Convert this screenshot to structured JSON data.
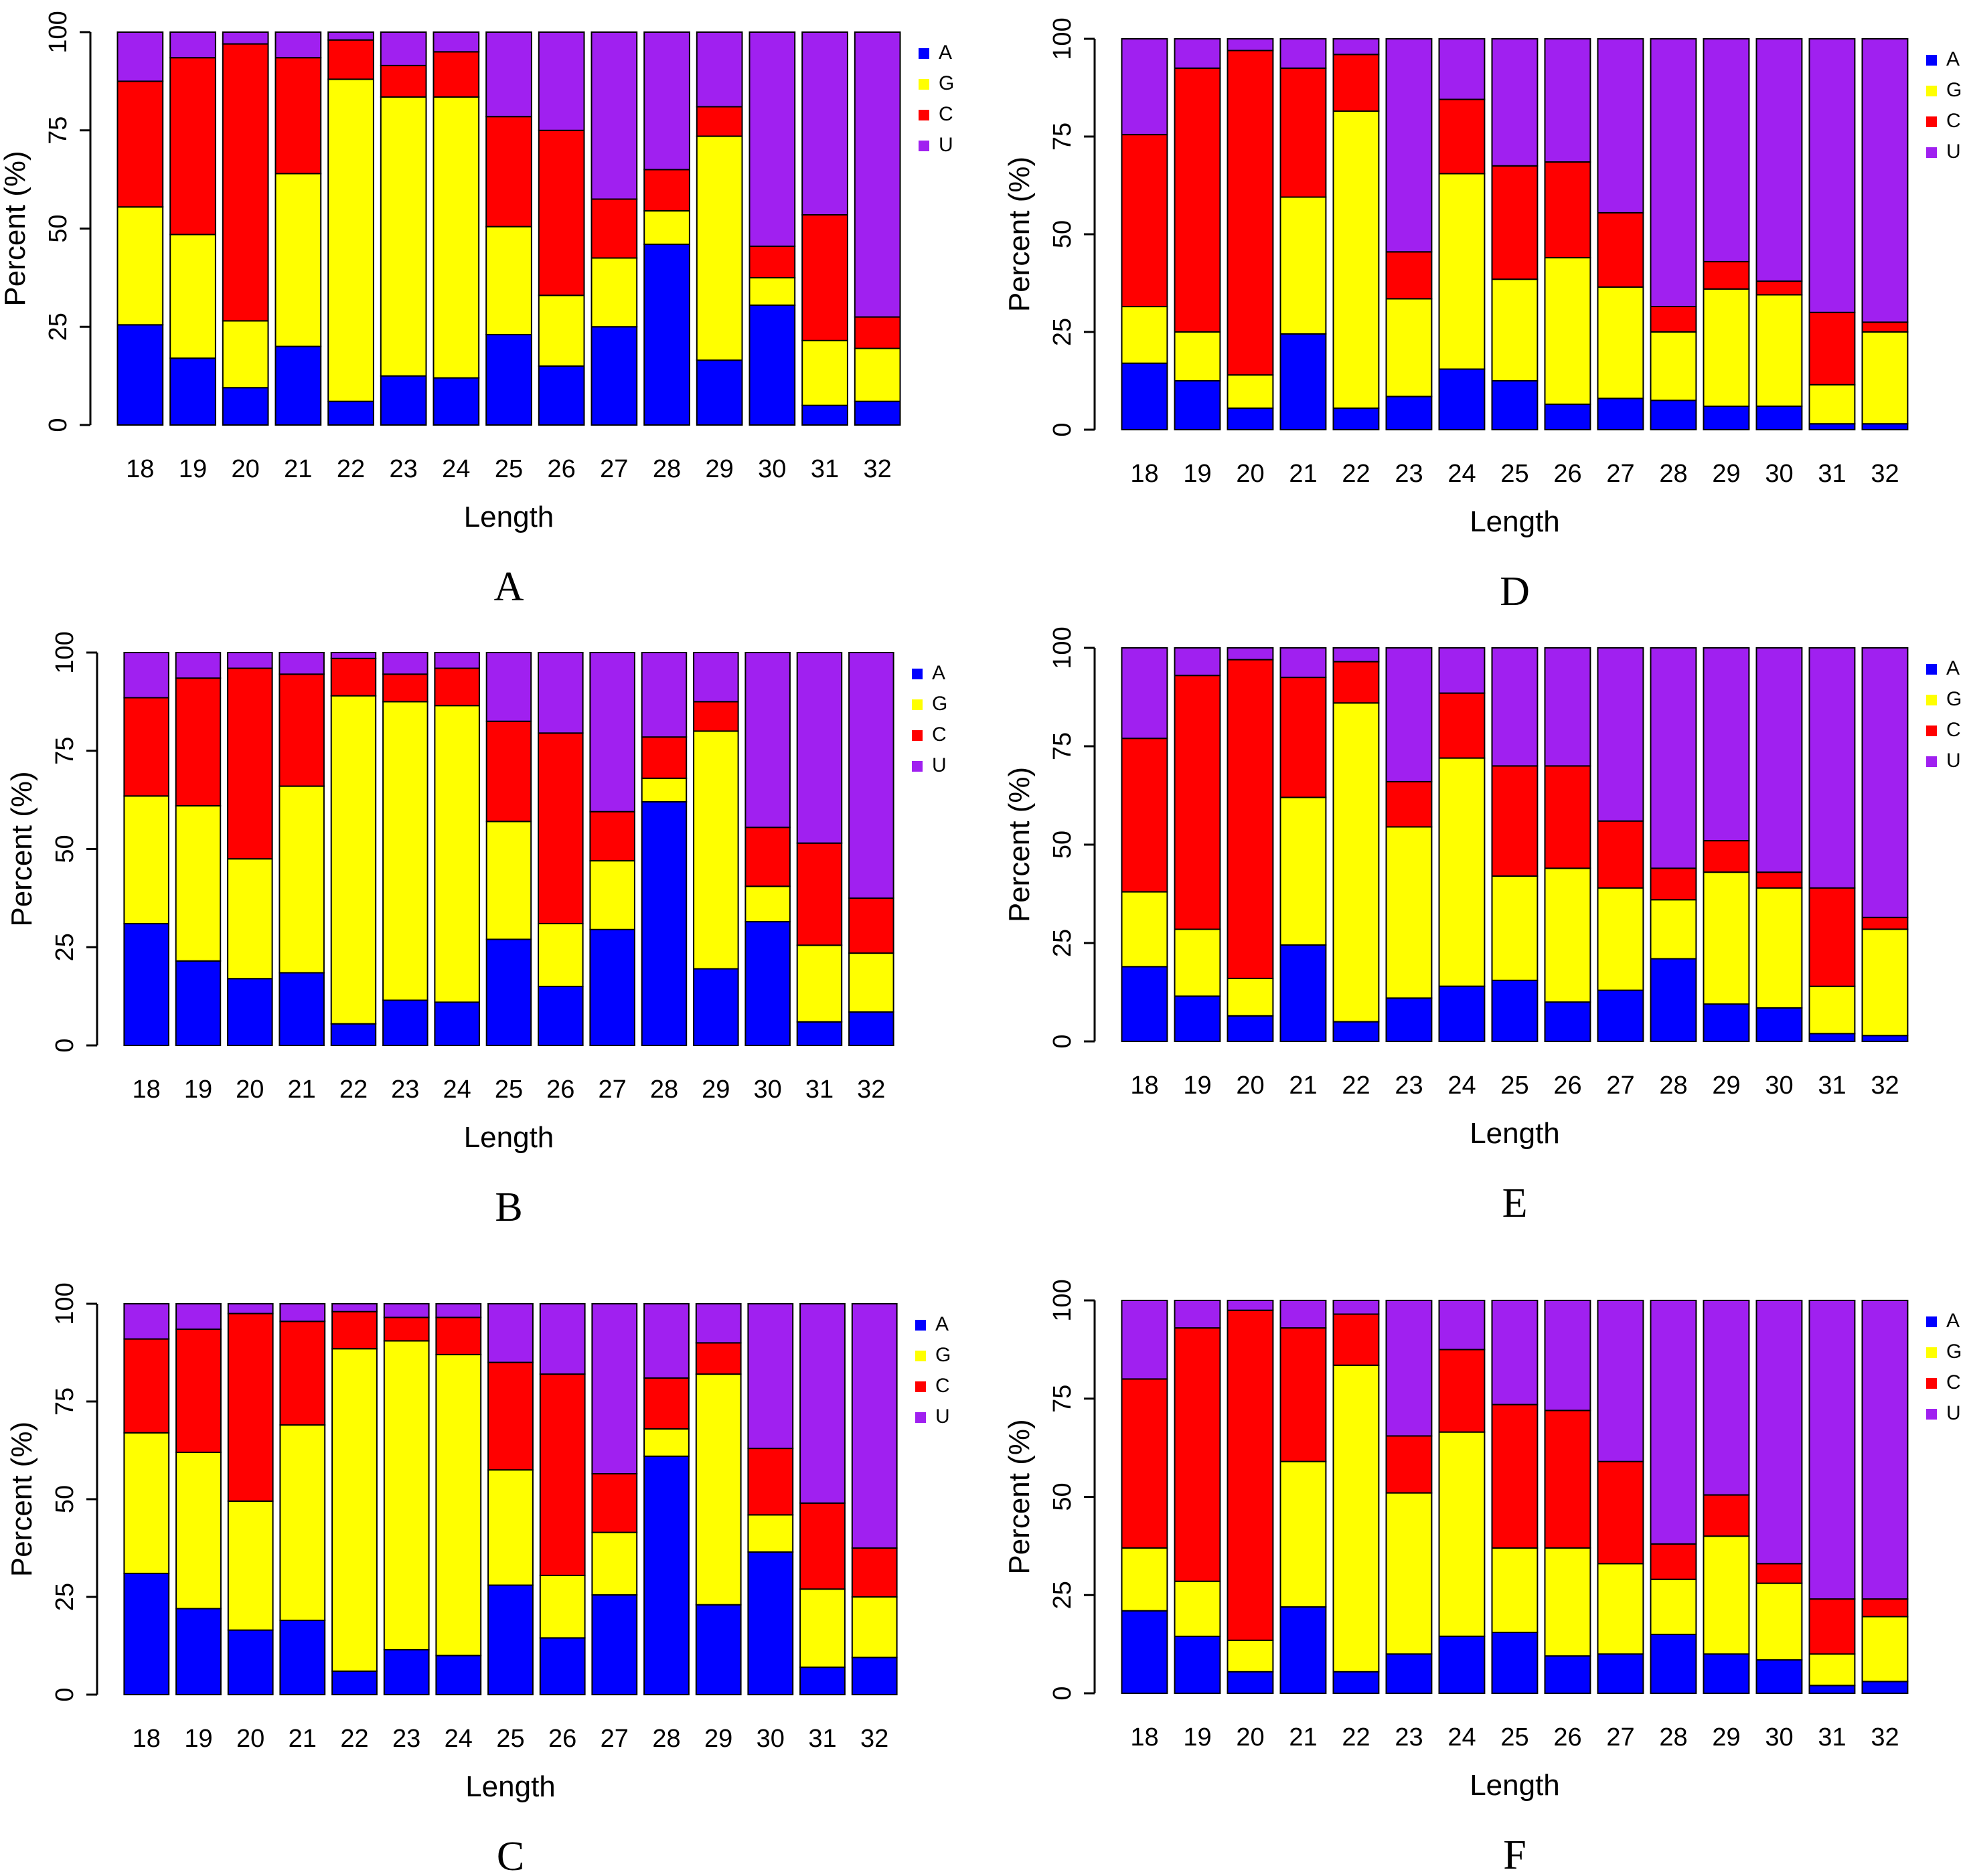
{
  "figure": {
    "legend": [
      {
        "label": "A",
        "color": "#0000ff"
      },
      {
        "label": "G",
        "color": "#ffff00"
      },
      {
        "label": "C",
        "color": "#ff0000"
      },
      {
        "label": "U",
        "color": "#a020f0"
      }
    ]
  },
  "chart_data": [
    {
      "panel": "A",
      "type": "bar",
      "stacked": true,
      "xlabel": "Length",
      "ylabel": "Percent (%)",
      "ylim": [
        0,
        100
      ],
      "yticks": [
        "0",
        "25",
        "50",
        "75",
        "100"
      ],
      "categories": [
        "18",
        "19",
        "20",
        "21",
        "22",
        "23",
        "24",
        "25",
        "26",
        "27",
        "28",
        "29",
        "30",
        "31",
        "32"
      ],
      "series": [
        {
          "name": "A",
          "values": [
            25.5,
            17,
            9.5,
            20,
            6,
            12.5,
            12,
            23,
            15,
            25,
            46,
            16.5,
            30.5,
            5,
            6
          ]
        },
        {
          "name": "G",
          "values": [
            30,
            31.5,
            17,
            44,
            82,
            71,
            71.5,
            27.5,
            18,
            17.5,
            8.5,
            57,
            7,
            16.5,
            13.5
          ]
        },
        {
          "name": "C",
          "values": [
            32,
            45,
            70.5,
            29.5,
            10,
            8,
            11.5,
            28,
            42,
            15,
            10.5,
            7.5,
            8,
            32,
            8
          ]
        },
        {
          "name": "U",
          "values": [
            12.5,
            6.5,
            3,
            6.5,
            2,
            8.5,
            5,
            21.5,
            25,
            42.5,
            35,
            19,
            54.5,
            46.5,
            72.5
          ]
        }
      ]
    },
    {
      "panel": "B",
      "type": "bar",
      "stacked": true,
      "xlabel": "Length",
      "ylabel": "Percent (%)",
      "ylim": [
        0,
        100
      ],
      "yticks": [
        "0",
        "25",
        "50",
        "75",
        "100"
      ],
      "categories": [
        "18",
        "19",
        "20",
        "21",
        "22",
        "23",
        "24",
        "25",
        "26",
        "27",
        "28",
        "29",
        "30",
        "31",
        "32"
      ],
      "series": [
        {
          "name": "A",
          "values": [
            31,
            21.5,
            17,
            18.5,
            5.5,
            11.5,
            11,
            27,
            15,
            29.5,
            62,
            19.5,
            31.5,
            6,
            8.5
          ]
        },
        {
          "name": "G",
          "values": [
            32.5,
            39.5,
            30.5,
            47.5,
            83.5,
            76,
            75.5,
            30,
            16,
            17.5,
            6,
            60.5,
            9,
            19.5,
            15
          ]
        },
        {
          "name": "C",
          "values": [
            25,
            32.5,
            48.5,
            28.5,
            9.5,
            7,
            9.5,
            25.5,
            48.5,
            12.5,
            10.5,
            7.5,
            15,
            26,
            14
          ]
        },
        {
          "name": "U",
          "values": [
            11.5,
            6.5,
            4,
            5.5,
            1.5,
            5.5,
            4,
            17.5,
            20.5,
            40.5,
            21.5,
            12.5,
            44.5,
            48.5,
            62.5
          ]
        }
      ]
    },
    {
      "panel": "C",
      "type": "bar",
      "stacked": true,
      "xlabel": "Length",
      "ylabel": "Percent (%)",
      "ylim": [
        0,
        100
      ],
      "yticks": [
        "0",
        "25",
        "50",
        "75",
        "100"
      ],
      "categories": [
        "18",
        "19",
        "20",
        "21",
        "22",
        "23",
        "24",
        "25",
        "26",
        "27",
        "28",
        "29",
        "30",
        "31",
        "32"
      ],
      "series": [
        {
          "name": "A",
          "values": [
            31,
            22,
            16.5,
            19,
            6,
            11.5,
            10,
            28,
            14.5,
            25.5,
            61,
            23,
            36.5,
            7,
            9.5
          ]
        },
        {
          "name": "G",
          "values": [
            36,
            40,
            33,
            50,
            82.5,
            79,
            77,
            29.5,
            16,
            16,
            7,
            59,
            9.5,
            20,
            15.5
          ]
        },
        {
          "name": "C",
          "values": [
            24,
            31.5,
            48,
            26.5,
            9.5,
            6,
            9.5,
            27.5,
            51.5,
            15,
            13,
            8,
            17,
            22,
            12.5
          ]
        },
        {
          "name": "U",
          "values": [
            9,
            6.5,
            2.5,
            4.5,
            2,
            3.5,
            3.5,
            15,
            18,
            43.5,
            19,
            10,
            37,
            51,
            62.5
          ]
        }
      ]
    },
    {
      "panel": "D",
      "type": "bar",
      "stacked": true,
      "xlabel": "Length",
      "ylabel": "Percent (%)",
      "ylim": [
        0,
        100
      ],
      "yticks": [
        "0",
        "25",
        "50",
        "75",
        "100"
      ],
      "categories": [
        "18",
        "19",
        "20",
        "21",
        "22",
        "23",
        "24",
        "25",
        "26",
        "27",
        "28",
        "29",
        "30",
        "31",
        "32"
      ],
      "series": [
        {
          "name": "A",
          "values": [
            17,
            12.5,
            5.5,
            24.5,
            5.5,
            8.5,
            15.5,
            12.5,
            6.5,
            8,
            7.5,
            6,
            6,
            1.5,
            1.5
          ]
        },
        {
          "name": "G",
          "values": [
            14.5,
            12.5,
            8.5,
            35,
            76,
            25,
            50,
            26,
            37.5,
            28.5,
            17.5,
            30,
            28.5,
            10,
            23.5
          ]
        },
        {
          "name": "C",
          "values": [
            44,
            67.5,
            83,
            33,
            14.5,
            12,
            19,
            29,
            24.5,
            19,
            6.5,
            7,
            3.5,
            18.5,
            2.5
          ]
        },
        {
          "name": "U",
          "values": [
            24.5,
            7.5,
            3,
            7.5,
            4,
            54.5,
            15.5,
            32.5,
            31.5,
            44.5,
            68.5,
            57,
            62,
            70,
            72.5
          ]
        }
      ]
    },
    {
      "panel": "E",
      "type": "bar",
      "stacked": true,
      "xlabel": "Length",
      "ylabel": "Percent (%)",
      "ylim": [
        0,
        100
      ],
      "yticks": [
        "0",
        "25",
        "50",
        "75",
        "100"
      ],
      "categories": [
        "18",
        "19",
        "20",
        "21",
        "22",
        "23",
        "24",
        "25",
        "26",
        "27",
        "28",
        "29",
        "30",
        "31",
        "32"
      ],
      "series": [
        {
          "name": "A",
          "values": [
            19,
            11.5,
            6.5,
            24.5,
            5,
            11,
            14,
            15.5,
            10,
            13,
            21,
            9.5,
            8.5,
            2,
            1.5
          ]
        },
        {
          "name": "G",
          "values": [
            19,
            17,
            9.5,
            37.5,
            81,
            43.5,
            58,
            26.5,
            34,
            26,
            15,
            33.5,
            30.5,
            12,
            27
          ]
        },
        {
          "name": "C",
          "values": [
            39,
            64.5,
            81,
            30.5,
            10.5,
            11.5,
            16.5,
            28,
            26,
            17,
            8,
            8,
            4,
            25,
            3
          ]
        },
        {
          "name": "U",
          "values": [
            23,
            7,
            3,
            7.5,
            3.5,
            34,
            11.5,
            30,
            30,
            44,
            56,
            49,
            57,
            61,
            68.5
          ]
        }
      ]
    },
    {
      "panel": "F",
      "type": "bar",
      "stacked": true,
      "xlabel": "Length",
      "ylabel": "Percent (%)",
      "ylim": [
        0,
        100
      ],
      "yticks": [
        "0",
        "25",
        "50",
        "75",
        "100"
      ],
      "categories": [
        "18",
        "19",
        "20",
        "21",
        "22",
        "23",
        "24",
        "25",
        "26",
        "27",
        "28",
        "29",
        "30",
        "31",
        "32"
      ],
      "series": [
        {
          "name": "A",
          "values": [
            21,
            14.5,
            5.5,
            22,
            5.5,
            10,
            14.5,
            15.5,
            9.5,
            10,
            15,
            10,
            8.5,
            2,
            3
          ]
        },
        {
          "name": "G",
          "values": [
            16,
            14,
            8,
            37,
            78,
            41,
            52,
            21.5,
            27.5,
            23,
            14,
            30,
            19.5,
            8,
            16.5
          ]
        },
        {
          "name": "C",
          "values": [
            43,
            64.5,
            84,
            34,
            13,
            14.5,
            21,
            36.5,
            35,
            26,
            9,
            10.5,
            5,
            14,
            4.5
          ]
        },
        {
          "name": "U",
          "values": [
            20,
            7,
            2.5,
            7,
            3.5,
            34.5,
            12.5,
            26.5,
            28,
            41,
            62,
            49.5,
            67,
            76,
            76
          ]
        }
      ]
    }
  ]
}
